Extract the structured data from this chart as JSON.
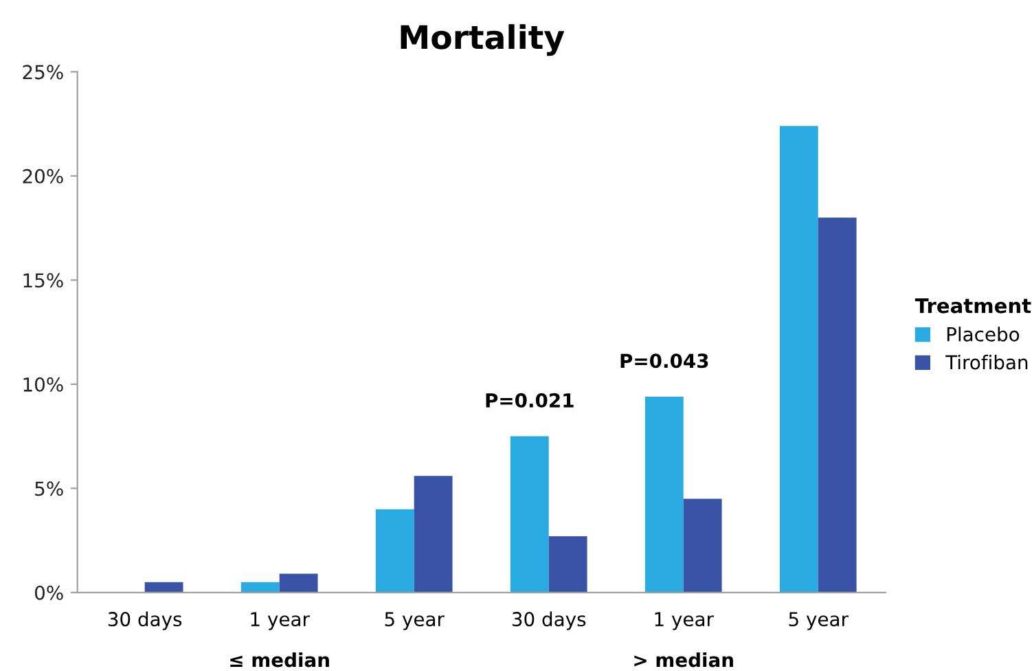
{
  "chart_data": {
    "type": "bar",
    "title": "Mortality",
    "legend_title": "Treatment",
    "categories": [
      "30 days",
      "1 year",
      "5 year",
      "30 days",
      "1 year",
      "5 year"
    ],
    "series": [
      {
        "name": "Placebo",
        "color": "#29abe2",
        "values": [
          0,
          0.5,
          4.0,
          7.5,
          9.4,
          22.4
        ]
      },
      {
        "name": "Tirofiban",
        "color": "#3953a4",
        "values": [
          0.5,
          0.9,
          5.6,
          2.7,
          4.5,
          18.0
        ]
      }
    ],
    "ylim": [
      0,
      25
    ],
    "yticks": [
      {
        "value": 0,
        "label": "0%"
      },
      {
        "value": 5,
        "label": "5%"
      },
      {
        "value": 10,
        "label": "10%"
      },
      {
        "value": 15,
        "label": "15%"
      },
      {
        "value": 20,
        "label": "20%"
      },
      {
        "value": 25,
        "label": "25%"
      }
    ],
    "annotations": [
      "≤ median",
      "> median",
      "P=0.021",
      "P=0.043"
    ],
    "grid": false,
    "legend": "right"
  }
}
